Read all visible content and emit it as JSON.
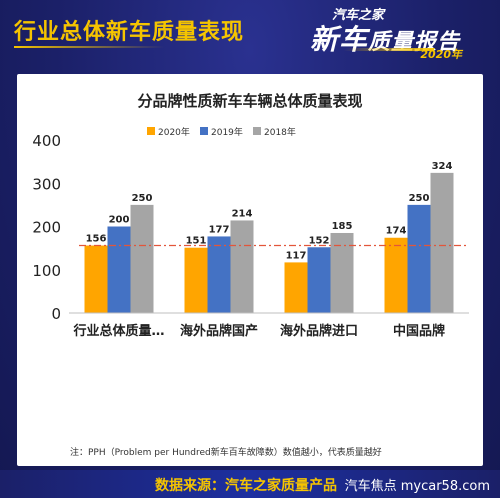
{
  "header": {
    "title": "行业总体新车质量表现"
  },
  "logo": {
    "brand": "汽车之家",
    "line2_big": "新车",
    "line2_rest": "质量报告",
    "year": "2020年"
  },
  "footnote": "注：PPH（Problem per Hundred新车百车故障数）数值越小，代表质量越好",
  "source": "数据来源：汽车之家质量产品",
  "watermark": "汽车焦点  mycar58.com",
  "chart_data": {
    "type": "bar",
    "title": "分品牌性质新车车辆总体质量表现",
    "categories": [
      "行业总体质量…",
      "海外品牌国产",
      "海外品牌进口",
      "中国品牌"
    ],
    "series": [
      {
        "name": "2020年",
        "values": [
          156,
          151,
          117,
          174
        ],
        "color": "#ffa500"
      },
      {
        "name": "2019年",
        "values": [
          200,
          177,
          152,
          250
        ],
        "color": "#4472c4"
      },
      {
        "name": "2018年",
        "values": [
          250,
          214,
          185,
          324
        ],
        "color": "#a5a5a5"
      }
    ],
    "ylim": [
      0,
      400
    ],
    "yticks": [
      0,
      100,
      200,
      300,
      400
    ],
    "reference_line": {
      "value": 156,
      "color": "#e2563b",
      "style": "dash-dot"
    },
    "legend_position": "top",
    "grid": false
  }
}
